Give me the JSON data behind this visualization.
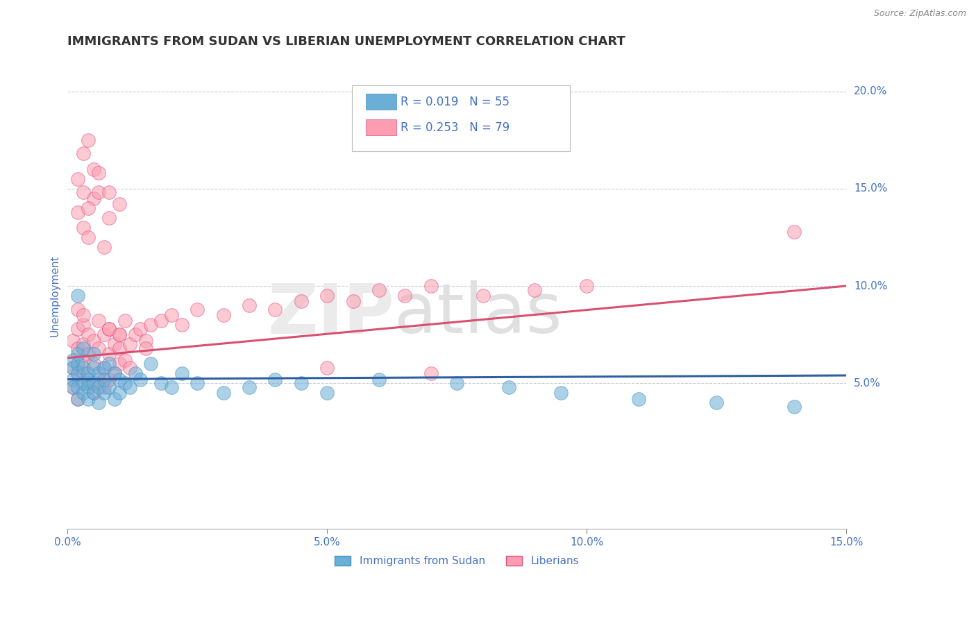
{
  "title": "IMMIGRANTS FROM SUDAN VS LIBERIAN UNEMPLOYMENT CORRELATION CHART",
  "source": "Source: ZipAtlas.com",
  "ylabel": "Unemployment",
  "xlim": [
    0,
    0.15
  ],
  "ylim": [
    -0.025,
    0.215
  ],
  "yticks": [
    0.05,
    0.1,
    0.15,
    0.2
  ],
  "ytick_labels": [
    "5.0%",
    "10.0%",
    "15.0%",
    "20.0%"
  ],
  "xticks": [
    0.0,
    0.05,
    0.1,
    0.15
  ],
  "xtick_labels": [
    "0.0%",
    "5.0%",
    "10.0%",
    "15.0%"
  ],
  "blue_color": "#6baed6",
  "pink_color": "#fc9db0",
  "blue_edge_color": "#4292c6",
  "pink_edge_color": "#e05080",
  "blue_label": "Immigrants from Sudan",
  "pink_label": "Liberians",
  "blue_R": "R = 0.019",
  "blue_N": "N = 55",
  "pink_R": "R = 0.253",
  "pink_N": "N = 79",
  "legend_text_color": "#4472c4",
  "axis_label_color": "#4472c4",
  "title_color": "#333333",
  "blue_scatter_x": [
    0.001,
    0.001,
    0.001,
    0.001,
    0.002,
    0.002,
    0.002,
    0.002,
    0.002,
    0.003,
    0.003,
    0.003,
    0.003,
    0.004,
    0.004,
    0.004,
    0.004,
    0.005,
    0.005,
    0.005,
    0.005,
    0.006,
    0.006,
    0.006,
    0.007,
    0.007,
    0.007,
    0.008,
    0.008,
    0.009,
    0.009,
    0.01,
    0.01,
    0.011,
    0.012,
    0.013,
    0.014,
    0.016,
    0.018,
    0.02,
    0.022,
    0.025,
    0.03,
    0.035,
    0.04,
    0.045,
    0.05,
    0.06,
    0.075,
    0.085,
    0.095,
    0.11,
    0.125,
    0.14,
    0.002
  ],
  "blue_scatter_y": [
    0.052,
    0.062,
    0.048,
    0.058,
    0.055,
    0.048,
    0.06,
    0.042,
    0.065,
    0.05,
    0.058,
    0.045,
    0.068,
    0.052,
    0.048,
    0.055,
    0.042,
    0.058,
    0.045,
    0.065,
    0.05,
    0.055,
    0.048,
    0.04,
    0.058,
    0.052,
    0.045,
    0.06,
    0.048,
    0.055,
    0.042,
    0.052,
    0.045,
    0.05,
    0.048,
    0.055,
    0.052,
    0.06,
    0.05,
    0.048,
    0.055,
    0.05,
    0.045,
    0.048,
    0.052,
    0.05,
    0.045,
    0.052,
    0.05,
    0.048,
    0.045,
    0.042,
    0.04,
    0.038,
    0.095
  ],
  "pink_scatter_x": [
    0.001,
    0.001,
    0.001,
    0.002,
    0.002,
    0.002,
    0.002,
    0.003,
    0.003,
    0.003,
    0.003,
    0.004,
    0.004,
    0.004,
    0.005,
    0.005,
    0.005,
    0.006,
    0.006,
    0.006,
    0.007,
    0.007,
    0.007,
    0.008,
    0.008,
    0.008,
    0.009,
    0.009,
    0.01,
    0.01,
    0.01,
    0.011,
    0.011,
    0.012,
    0.012,
    0.013,
    0.014,
    0.015,
    0.016,
    0.018,
    0.02,
    0.022,
    0.025,
    0.03,
    0.035,
    0.04,
    0.045,
    0.05,
    0.055,
    0.06,
    0.065,
    0.07,
    0.08,
    0.09,
    0.1,
    0.002,
    0.003,
    0.004,
    0.005,
    0.006,
    0.007,
    0.008,
    0.002,
    0.003,
    0.004,
    0.002,
    0.003,
    0.008,
    0.01,
    0.015,
    0.003,
    0.004,
    0.005,
    0.006,
    0.008,
    0.01,
    0.05,
    0.07,
    0.14
  ],
  "pink_scatter_y": [
    0.058,
    0.072,
    0.048,
    0.068,
    0.055,
    0.078,
    0.042,
    0.07,
    0.062,
    0.055,
    0.08,
    0.065,
    0.05,
    0.075,
    0.06,
    0.072,
    0.045,
    0.068,
    0.052,
    0.082,
    0.058,
    0.075,
    0.048,
    0.065,
    0.078,
    0.052,
    0.07,
    0.055,
    0.068,
    0.06,
    0.075,
    0.062,
    0.082,
    0.058,
    0.07,
    0.075,
    0.078,
    0.072,
    0.08,
    0.082,
    0.085,
    0.08,
    0.088,
    0.085,
    0.09,
    0.088,
    0.092,
    0.095,
    0.092,
    0.098,
    0.095,
    0.1,
    0.095,
    0.098,
    0.1,
    0.138,
    0.13,
    0.125,
    0.145,
    0.148,
    0.12,
    0.135,
    0.155,
    0.148,
    0.14,
    0.088,
    0.085,
    0.078,
    0.075,
    0.068,
    0.168,
    0.175,
    0.16,
    0.158,
    0.148,
    0.142,
    0.058,
    0.055,
    0.128
  ],
  "blue_trend_x": [
    0.0,
    0.15
  ],
  "blue_trend_y": [
    0.052,
    0.054
  ],
  "pink_trend_x": [
    0.0,
    0.15
  ],
  "pink_trend_y": [
    0.063,
    0.1
  ],
  "background_color": "#ffffff",
  "grid_color": "#cccccc",
  "title_fontsize": 13,
  "axis_fontsize": 11,
  "tick_fontsize": 11,
  "legend_fontsize": 12
}
